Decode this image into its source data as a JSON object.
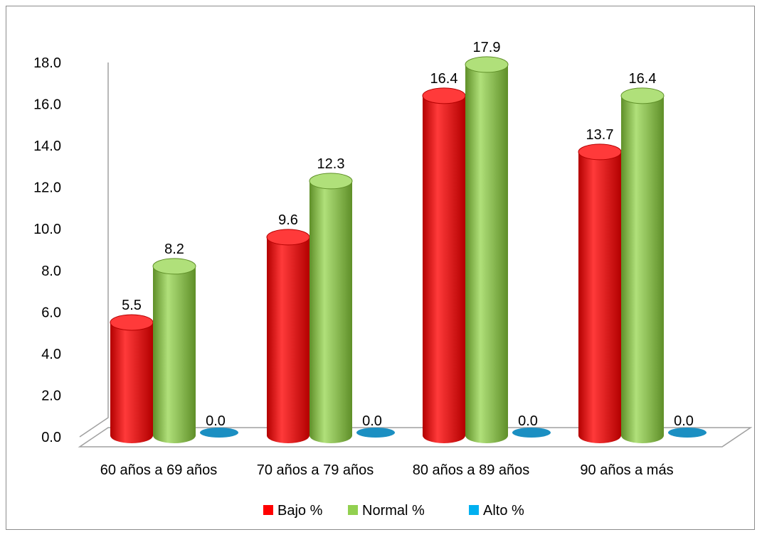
{
  "chart_data": {
    "type": "bar",
    "categories": [
      "60 años a 69 años",
      "70 años a 79 años",
      "80 años a 89 años",
      "90 años a más"
    ],
    "series": [
      {
        "name": "Bajo %",
        "values": [
          5.5,
          9.6,
          16.4,
          13.7
        ],
        "color": "#ff0000"
      },
      {
        "name": "Normal %",
        "values": [
          8.2,
          12.3,
          17.9,
          16.4
        ],
        "color": "#92d050"
      },
      {
        "name": "Alto %",
        "values": [
          0.0,
          0.0,
          0.0,
          0.0
        ],
        "color": "#00b0f0"
      }
    ],
    "ylim": [
      0,
      18
    ],
    "yticks": [
      "0.0",
      "2.0",
      "4.0",
      "6.0",
      "8.0",
      "10.0",
      "12.0",
      "14.0",
      "16.0",
      "18.0"
    ],
    "value_format_decimals": 1,
    "legend_position": "bottom",
    "style": "3d-cylinder",
    "grid": false
  }
}
